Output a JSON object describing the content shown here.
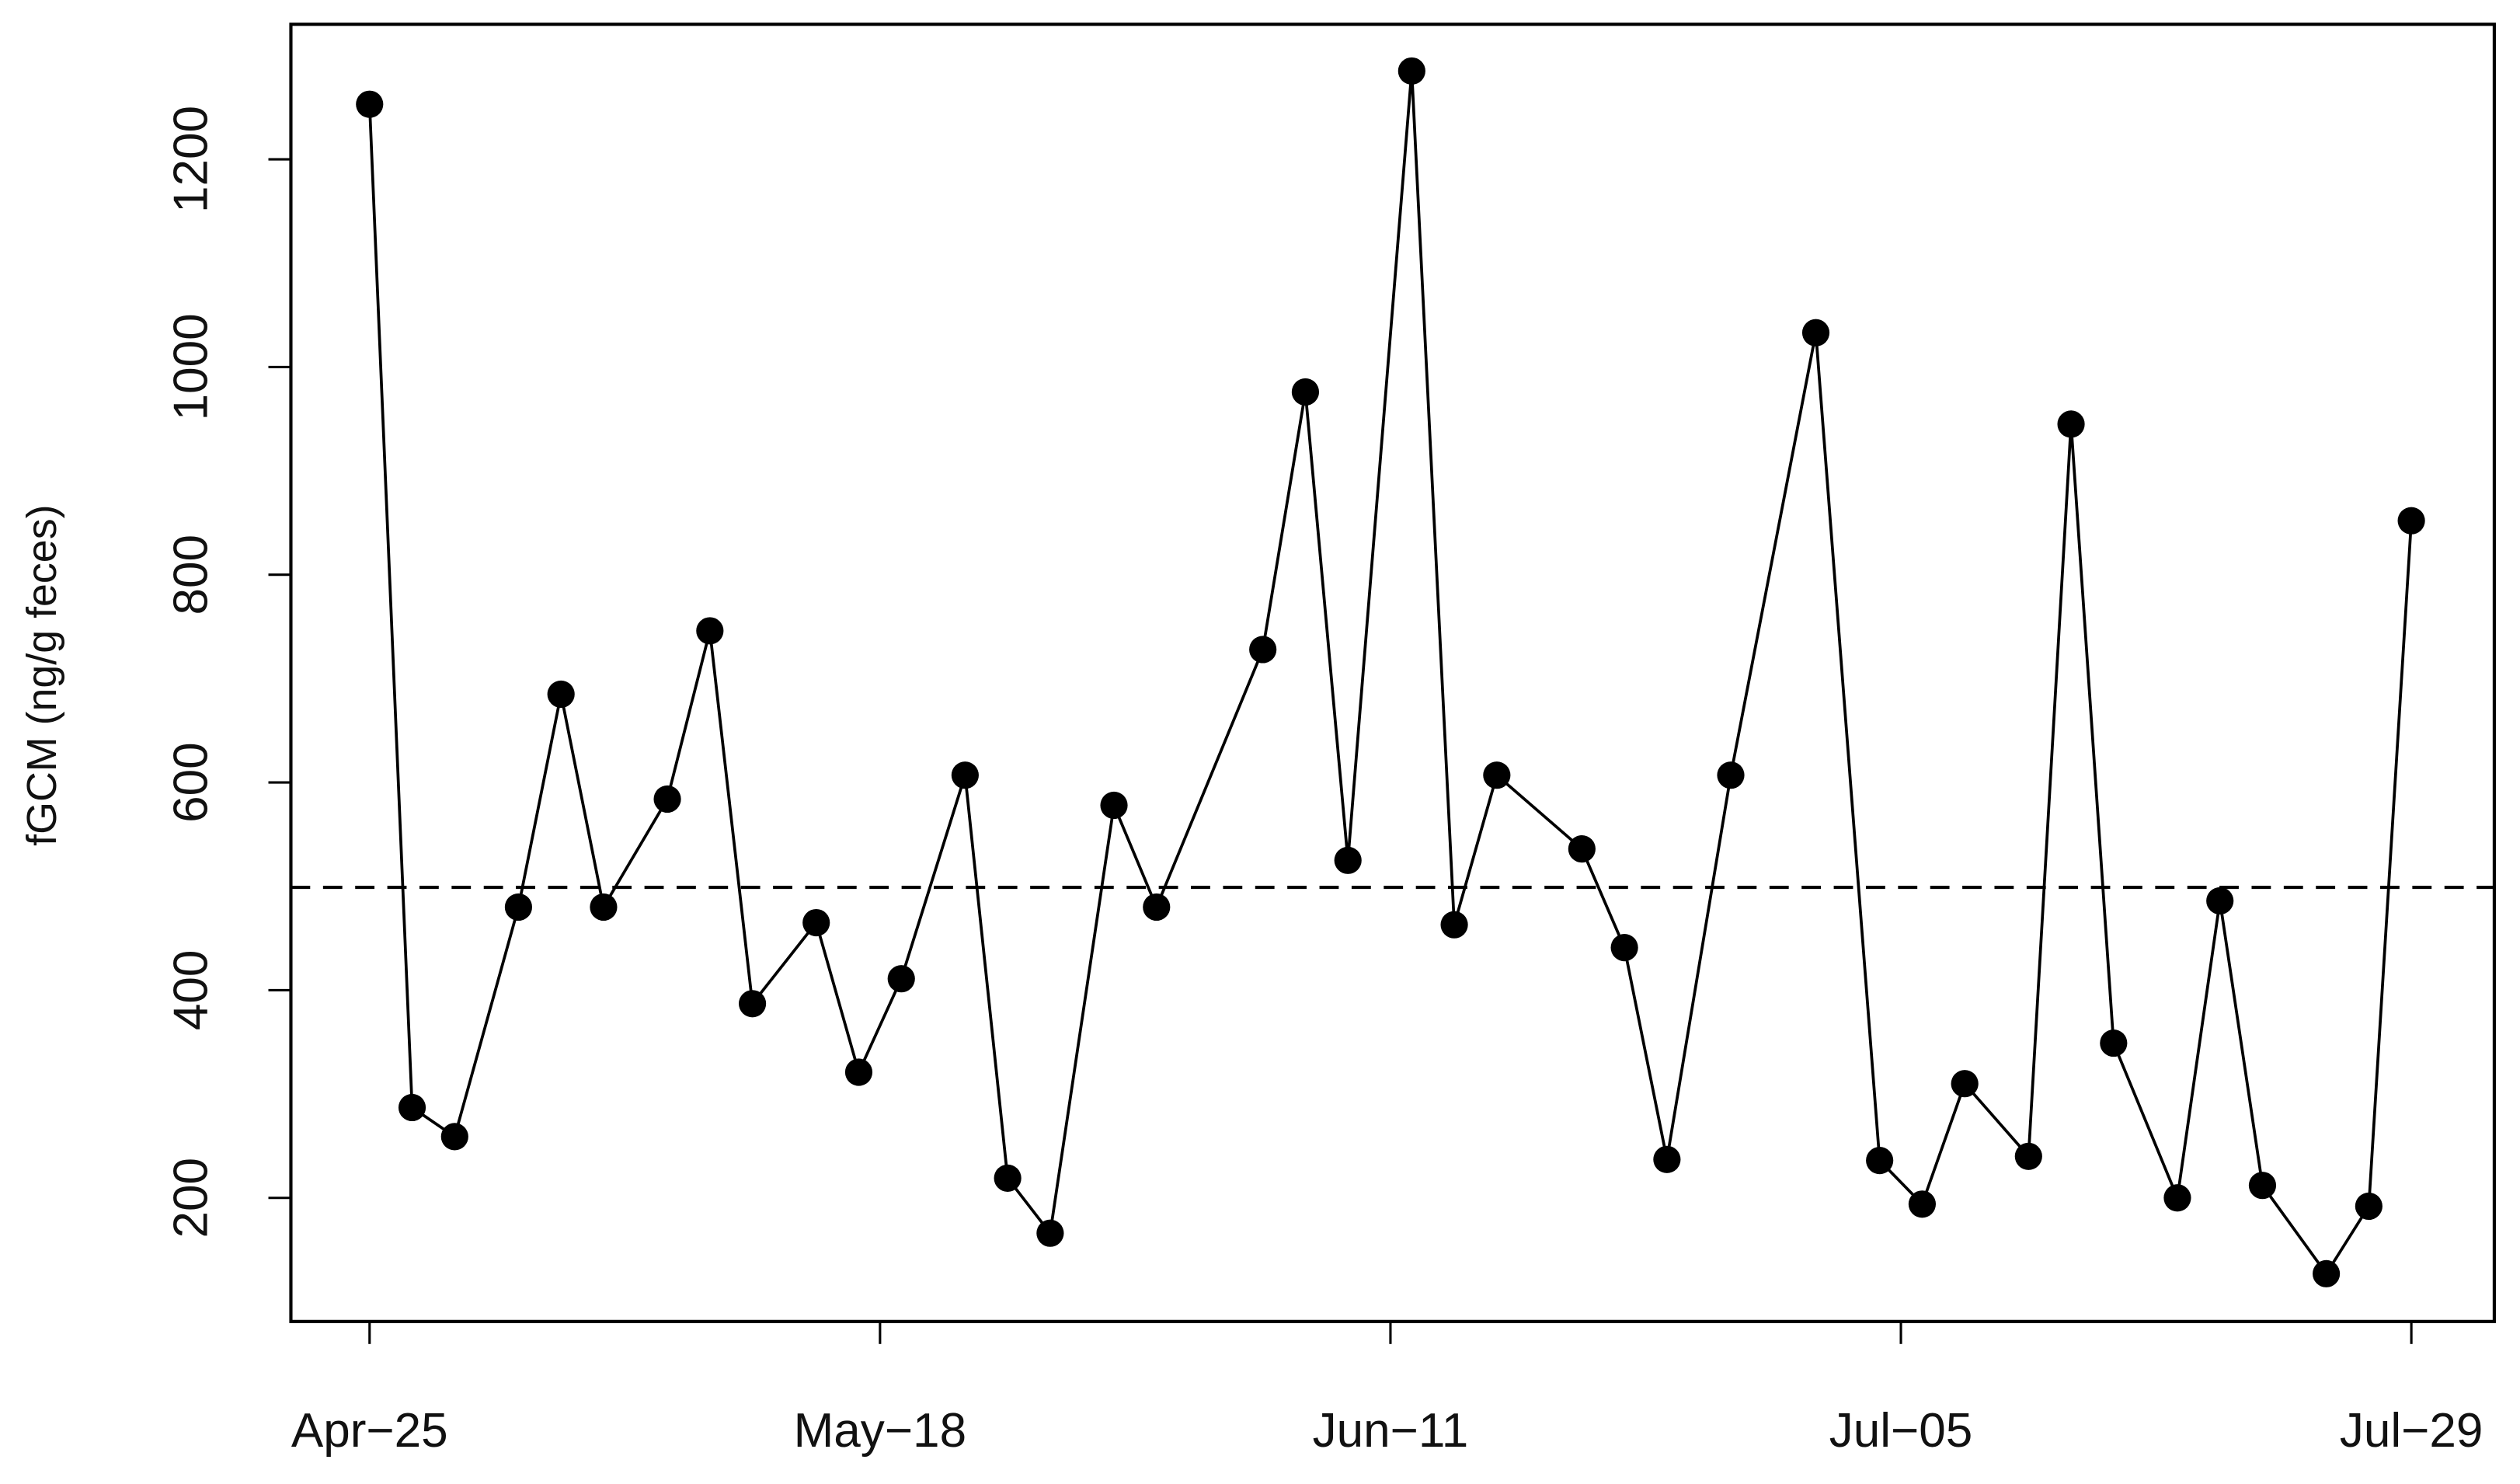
{
  "chart_data": {
    "type": "line",
    "y_label": "fGCM (ng/g feces)",
    "x": [
      0,
      2,
      4,
      7,
      9,
      11,
      14,
      16,
      18,
      21,
      23,
      25,
      28,
      30,
      32,
      35,
      37,
      42,
      44,
      46,
      49,
      51,
      53,
      57,
      59,
      61,
      64,
      68,
      71,
      73,
      75,
      78,
      80,
      82,
      85,
      87,
      89,
      92,
      94,
      96
    ],
    "series": [
      {
        "color": "#000000",
        "values": [
          1253,
          287,
          259,
          480,
          685,
          480,
          584,
          746,
          387,
          465,
          321,
          411,
          607,
          219,
          166,
          578,
          480,
          728,
          976,
          525,
          1285,
          463,
          607,
          536,
          441,
          237,
          607,
          1033,
          236,
          194,
          310,
          240,
          945,
          349,
          200,
          486,
          212,
          127,
          192,
          852
        ]
      }
    ],
    "reference_line": 499,
    "xlim": [
      -3.7,
      99.9
    ],
    "xticks": [
      {
        "value": 0,
        "label": "Apr−25"
      },
      {
        "value": 24,
        "label": "May−18"
      },
      {
        "value": 48,
        "label": "Jun−11"
      },
      {
        "value": 72,
        "label": "Jul−05"
      },
      {
        "value": 96,
        "label": "Jul−29"
      }
    ],
    "ylim": [
      81,
      1330
    ],
    "yticks": [
      200,
      400,
      600,
      800,
      1000,
      1200
    ]
  }
}
